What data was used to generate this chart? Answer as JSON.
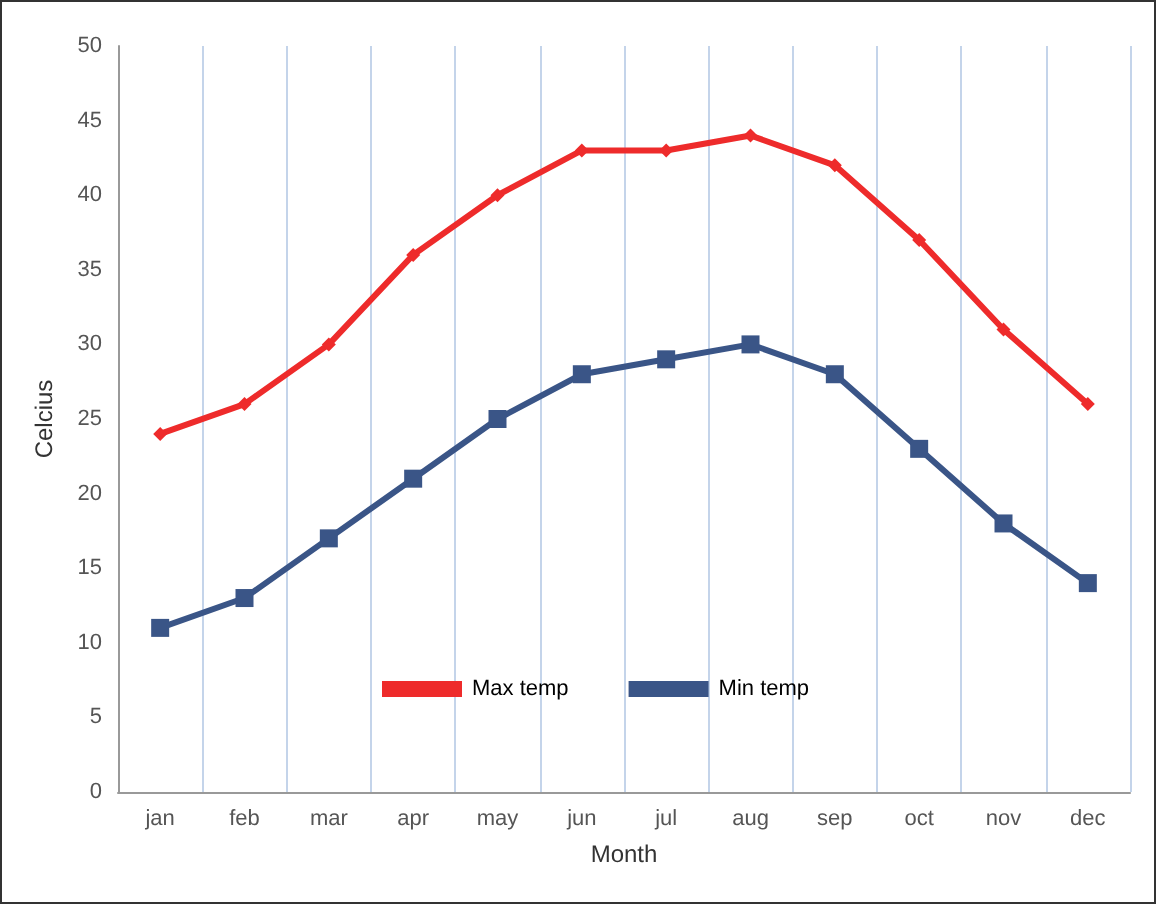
{
  "chart_data": {
    "type": "line",
    "xlabel": "Month",
    "ylabel": "Celcius",
    "categories": [
      "jan",
      "feb",
      "mar",
      "apr",
      "may",
      "jun",
      "jul",
      "aug",
      "sep",
      "oct",
      "nov",
      "dec"
    ],
    "series": [
      {
        "name": "Max temp",
        "color": "#ee2b2b",
        "marker": "diamond",
        "values": [
          24,
          26,
          30,
          36,
          40,
          43,
          43,
          44,
          42,
          37,
          31,
          26
        ]
      },
      {
        "name": "Min temp",
        "color": "#3a5587",
        "marker": "square",
        "values": [
          11,
          13,
          17,
          21,
          25,
          28,
          29,
          30,
          28,
          23,
          18,
          14
        ]
      }
    ],
    "ylim": [
      0,
      50
    ],
    "yticks": [
      0,
      5,
      10,
      15,
      20,
      25,
      30,
      35,
      40,
      45,
      50
    ],
    "grid": "x",
    "legend": "bottom",
    "line_style": "solid"
  }
}
